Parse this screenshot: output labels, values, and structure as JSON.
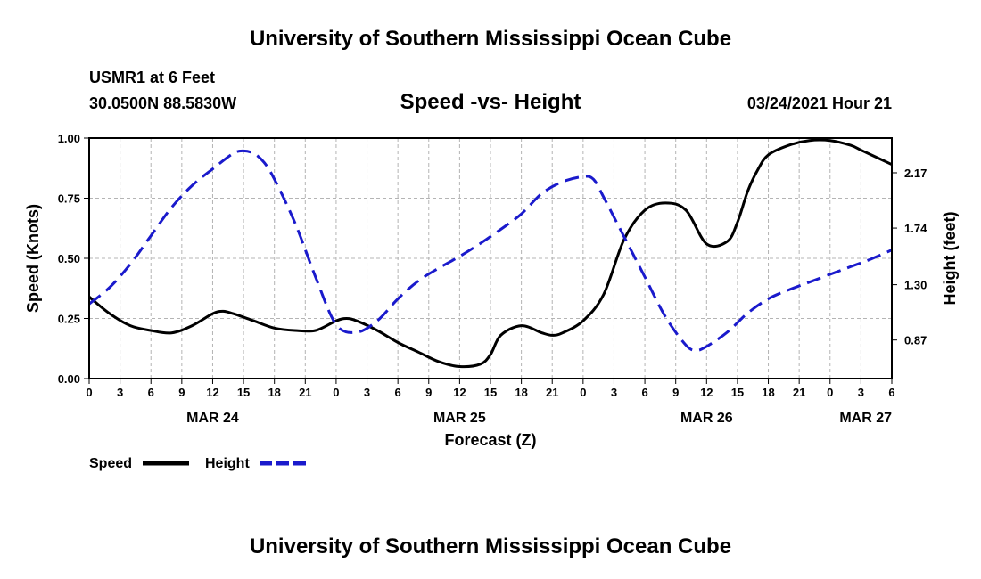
{
  "header": {
    "top_title": "University of Southern Mississippi Ocean Cube",
    "station": "USMR1 at 6 Feet",
    "coords": "30.0500N 88.5830W",
    "chart_title": "Speed -vs- Height",
    "date": "03/24/2021 Hour 21"
  },
  "footer": {
    "bottom_title": "University of Southern Mississippi Ocean Cube"
  },
  "colors": {
    "speed": "#000000",
    "height": "#1a1acc",
    "grid": "#b4b4b4"
  },
  "chart_data": {
    "type": "line",
    "title": "Speed -vs- Height",
    "xlabel": "Forecast (Z)",
    "ylabel": "Speed (Knots)",
    "y2label": "Height (feet)",
    "xlim": [
      0,
      78
    ],
    "ylim": [
      0,
      1
    ],
    "y2lim": [
      0.57,
      2.44
    ],
    "x_tick_values": [
      0,
      3,
      6,
      9,
      12,
      15,
      18,
      21,
      24,
      27,
      30,
      33,
      36,
      39,
      42,
      45,
      48,
      51,
      54,
      57,
      60,
      63,
      66,
      69,
      72,
      75,
      78
    ],
    "x_tick_labels": [
      "0",
      "3",
      "6",
      "9",
      "12",
      "15",
      "18",
      "21",
      "0",
      "3",
      "6",
      "9",
      "12",
      "15",
      "18",
      "21",
      "0",
      "3",
      "6",
      "9",
      "12",
      "15",
      "18",
      "21",
      "0",
      "3",
      "6"
    ],
    "date_labels": [
      {
        "x": 12,
        "label": "MAR 24"
      },
      {
        "x": 36,
        "label": "MAR 25"
      },
      {
        "x": 60,
        "label": "MAR 26"
      },
      {
        "x": 78,
        "label": "MAR 27"
      }
    ],
    "y_tick_values": [
      0,
      0.25,
      0.5,
      0.75,
      1.0
    ],
    "y_tick_labels": [
      "0.00",
      "0.25",
      "0.50",
      "0.75",
      "1.00"
    ],
    "y2_tick_values": [
      0.87,
      1.3,
      1.74,
      2.17
    ],
    "y2_tick_labels": [
      "0.87",
      "1.30",
      "1.74",
      "2.17"
    ],
    "legend": [
      {
        "name": "Speed",
        "style": "solid"
      },
      {
        "name": "Height",
        "style": "dashed"
      }
    ],
    "series": [
      {
        "name": "Speed",
        "axis": "left",
        "style": "solid",
        "x": [
          0,
          2,
          4,
          6,
          8,
          10,
          12,
          13,
          14,
          16,
          18,
          20,
          22,
          24,
          25,
          26,
          28,
          30,
          32,
          34,
          36,
          38,
          39,
          40,
          42,
          44,
          45,
          46,
          48,
          50,
          52,
          54,
          56,
          58,
          60,
          62,
          63,
          64,
          65,
          66,
          68,
          70,
          72,
          74,
          75,
          76,
          78
        ],
        "y": [
          0.34,
          0.27,
          0.22,
          0.2,
          0.19,
          0.22,
          0.27,
          0.28,
          0.27,
          0.24,
          0.21,
          0.2,
          0.2,
          0.24,
          0.25,
          0.24,
          0.2,
          0.15,
          0.11,
          0.07,
          0.05,
          0.06,
          0.1,
          0.18,
          0.22,
          0.19,
          0.18,
          0.19,
          0.24,
          0.35,
          0.58,
          0.7,
          0.73,
          0.7,
          0.56,
          0.57,
          0.65,
          0.78,
          0.87,
          0.93,
          0.97,
          0.99,
          0.99,
          0.97,
          0.95,
          0.93,
          0.89
        ]
      },
      {
        "name": "Height",
        "axis": "right",
        "style": "dashed",
        "x": [
          0,
          2,
          4,
          6,
          8,
          10,
          12,
          14,
          15,
          16,
          17,
          18,
          20,
          22,
          24,
          26,
          28,
          30,
          32,
          34,
          36,
          38,
          40,
          42,
          44,
          46,
          48,
          49,
          50,
          52,
          54,
          56,
          58,
          59,
          60,
          62,
          64,
          66,
          68,
          70,
          72,
          74,
          76,
          78
        ],
        "y": [
          1.15,
          1.28,
          1.46,
          1.68,
          1.9,
          2.07,
          2.2,
          2.32,
          2.34,
          2.32,
          2.25,
          2.12,
          1.78,
          1.36,
          0.99,
          0.93,
          1.02,
          1.19,
          1.33,
          1.43,
          1.52,
          1.62,
          1.73,
          1.85,
          2.01,
          2.1,
          2.14,
          2.12,
          1.98,
          1.67,
          1.36,
          1.05,
          0.83,
          0.79,
          0.82,
          0.93,
          1.08,
          1.19,
          1.26,
          1.32,
          1.38,
          1.44,
          1.5,
          1.57
        ]
      }
    ]
  }
}
